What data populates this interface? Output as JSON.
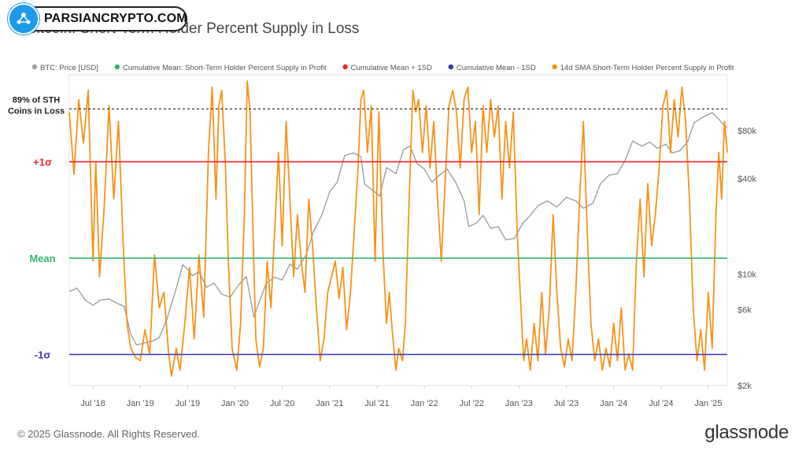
{
  "watermark": {
    "text": "PARSIANCRYPTO.COM"
  },
  "chart_data": {
    "type": "line",
    "title": "Bitcoin: Short-Term Holder Percent Supply in Loss",
    "legend_position": "top",
    "legend": [
      {
        "name": "BTC: Price [USD]",
        "color": "#9aa2a6"
      },
      {
        "name": "Cumulative Mean: Short-Term Holder Percent Supply in Profit",
        "color": "#3cb371"
      },
      {
        "name": "Cumulative Mean + 1SD",
        "color": "#e8262a"
      },
      {
        "name": "Cumulative Mean - 1SD",
        "color": "#3a35b8"
      },
      {
        "name": "14d SMA Short-Term Holder Percent Supply in Profit",
        "color": "#f7931a"
      }
    ],
    "x_ticks": [
      "Jul '18",
      "Jan '19",
      "Jul '19",
      "Jan '20",
      "Jul '20",
      "Jan '21",
      "Jul '21",
      "Jan '22",
      "Jul '22",
      "Jan '23",
      "Jul '23",
      "Jan '24",
      "Jul '24",
      "Jan '25"
    ],
    "x_range": [
      2018.25,
      2025.2
    ],
    "y_right_ticks": [
      {
        "label": "$80k",
        "value": 80000
      },
      {
        "label": "$40k",
        "value": 40000
      },
      {
        "label": "$10k",
        "value": 10000
      },
      {
        "label": "$6k",
        "value": 6000
      },
      {
        "label": "$2k",
        "value": 2000
      }
    ],
    "y_right_scale": "log",
    "y_right_range": [
      2000,
      180000
    ],
    "reference_lines": [
      {
        "label": "89% of STH Coins in Loss",
        "style": "dashed",
        "color": "#222222",
        "level": 89
      },
      {
        "label": "+1σ",
        "color": "#e8262a",
        "level": 72
      },
      {
        "label": "Mean",
        "color": "#3cb371",
        "level": 41
      },
      {
        "label": "-1σ",
        "color": "#3a35b8",
        "level": 10
      }
    ],
    "y_left_range": [
      0,
      100
    ],
    "price_series": {
      "name": "BTC: Price [USD]",
      "points": [
        [
          2018.25,
          7800
        ],
        [
          2018.33,
          8200
        ],
        [
          2018.42,
          6900
        ],
        [
          2018.5,
          6400
        ],
        [
          2018.58,
          6900
        ],
        [
          2018.67,
          7000
        ],
        [
          2018.75,
          6600
        ],
        [
          2018.83,
          6300
        ],
        [
          2018.9,
          4200
        ],
        [
          2018.96,
          3600
        ],
        [
          2019.04,
          3700
        ],
        [
          2019.12,
          3800
        ],
        [
          2019.2,
          4000
        ],
        [
          2019.28,
          5200
        ],
        [
          2019.37,
          7800
        ],
        [
          2019.45,
          11500
        ],
        [
          2019.5,
          10800
        ],
        [
          2019.55,
          9800
        ],
        [
          2019.62,
          10400
        ],
        [
          2019.7,
          8300
        ],
        [
          2019.78,
          8800
        ],
        [
          2019.86,
          7500
        ],
        [
          2019.95,
          7200
        ],
        [
          2020.04,
          8600
        ],
        [
          2020.12,
          9700
        ],
        [
          2020.2,
          5400
        ],
        [
          2020.26,
          6800
        ],
        [
          2020.33,
          8800
        ],
        [
          2020.42,
          9600
        ],
        [
          2020.5,
          9200
        ],
        [
          2020.58,
          11600
        ],
        [
          2020.66,
          10800
        ],
        [
          2020.75,
          13200
        ],
        [
          2020.83,
          18500
        ],
        [
          2020.92,
          23800
        ],
        [
          2021.0,
          33000
        ],
        [
          2021.08,
          38000
        ],
        [
          2021.16,
          56000
        ],
        [
          2021.25,
          58000
        ],
        [
          2021.33,
          55000
        ],
        [
          2021.37,
          37000
        ],
        [
          2021.45,
          34000
        ],
        [
          2021.53,
          31000
        ],
        [
          2021.6,
          47000
        ],
        [
          2021.7,
          43000
        ],
        [
          2021.78,
          61000
        ],
        [
          2021.85,
          64000
        ],
        [
          2021.92,
          50000
        ],
        [
          2022.0,
          46000
        ],
        [
          2022.08,
          38000
        ],
        [
          2022.16,
          42000
        ],
        [
          2022.24,
          46000
        ],
        [
          2022.33,
          38000
        ],
        [
          2022.42,
          29000
        ],
        [
          2022.47,
          20000
        ],
        [
          2022.55,
          21000
        ],
        [
          2022.62,
          23500
        ],
        [
          2022.7,
          19500
        ],
        [
          2022.78,
          20000
        ],
        [
          2022.86,
          16500
        ],
        [
          2022.95,
          16800
        ],
        [
          2023.04,
          21000
        ],
        [
          2023.12,
          23500
        ],
        [
          2023.2,
          27000
        ],
        [
          2023.3,
          29000
        ],
        [
          2023.4,
          26500
        ],
        [
          2023.5,
          30500
        ],
        [
          2023.6,
          29000
        ],
        [
          2023.68,
          26000
        ],
        [
          2023.78,
          28000
        ],
        [
          2023.86,
          37000
        ],
        [
          2023.95,
          42000
        ],
        [
          2024.04,
          43000
        ],
        [
          2024.12,
          52000
        ],
        [
          2024.2,
          69000
        ],
        [
          2024.3,
          64000
        ],
        [
          2024.38,
          68000
        ],
        [
          2024.46,
          62000
        ],
        [
          2024.55,
          66000
        ],
        [
          2024.62,
          58000
        ],
        [
          2024.7,
          60000
        ],
        [
          2024.78,
          68000
        ],
        [
          2024.85,
          90000
        ],
        [
          2024.95,
          98000
        ],
        [
          2025.04,
          104000
        ],
        [
          2025.1,
          96000
        ],
        [
          2025.17,
          86000
        ],
        [
          2025.2,
          84000
        ]
      ]
    },
    "sma_series": {
      "name": "14d SMA Short-Term Holder Percent Supply in Profit",
      "points": [
        [
          2018.25,
          88
        ],
        [
          2018.3,
          68
        ],
        [
          2018.35,
          92
        ],
        [
          2018.4,
          78
        ],
        [
          2018.45,
          95
        ],
        [
          2018.5,
          40
        ],
        [
          2018.53,
          72
        ],
        [
          2018.57,
          35
        ],
        [
          2018.62,
          58
        ],
        [
          2018.67,
          90
        ],
        [
          2018.72,
          60
        ],
        [
          2018.77,
          85
        ],
        [
          2018.82,
          45
        ],
        [
          2018.86,
          20
        ],
        [
          2018.9,
          12
        ],
        [
          2018.95,
          9
        ],
        [
          2019.0,
          8
        ],
        [
          2019.05,
          18
        ],
        [
          2019.1,
          10
        ],
        [
          2019.15,
          42
        ],
        [
          2019.2,
          25
        ],
        [
          2019.25,
          30
        ],
        [
          2019.3,
          10
        ],
        [
          2019.33,
          3
        ],
        [
          2019.38,
          12
        ],
        [
          2019.42,
          5
        ],
        [
          2019.47,
          20
        ],
        [
          2019.52,
          38
        ],
        [
          2019.57,
          15
        ],
        [
          2019.62,
          42
        ],
        [
          2019.67,
          22
        ],
        [
          2019.72,
          75
        ],
        [
          2019.76,
          96
        ],
        [
          2019.8,
          60
        ],
        [
          2019.83,
          90
        ],
        [
          2019.86,
          95
        ],
        [
          2019.9,
          70
        ],
        [
          2019.93,
          40
        ],
        [
          2019.97,
          12
        ],
        [
          2020.02,
          5
        ],
        [
          2020.06,
          20
        ],
        [
          2020.1,
          55
        ],
        [
          2020.13,
          98
        ],
        [
          2020.16,
          88
        ],
        [
          2020.19,
          50
        ],
        [
          2020.22,
          15
        ],
        [
          2020.26,
          6
        ],
        [
          2020.3,
          12
        ],
        [
          2020.34,
          40
        ],
        [
          2020.38,
          25
        ],
        [
          2020.42,
          50
        ],
        [
          2020.46,
          75
        ],
        [
          2020.5,
          45
        ],
        [
          2020.54,
          85
        ],
        [
          2020.58,
          60
        ],
        [
          2020.62,
          35
        ],
        [
          2020.66,
          55
        ],
        [
          2020.7,
          40
        ],
        [
          2020.74,
          30
        ],
        [
          2020.78,
          60
        ],
        [
          2020.82,
          45
        ],
        [
          2020.86,
          25
        ],
        [
          2020.9,
          8
        ],
        [
          2020.94,
          15
        ],
        [
          2020.98,
          30
        ],
        [
          2021.02,
          35
        ],
        [
          2021.06,
          40
        ],
        [
          2021.1,
          28
        ],
        [
          2021.14,
          38
        ],
        [
          2021.18,
          18
        ],
        [
          2021.22,
          30
        ],
        [
          2021.26,
          50
        ],
        [
          2021.3,
          70
        ],
        [
          2021.33,
          92
        ],
        [
          2021.36,
          95
        ],
        [
          2021.4,
          75
        ],
        [
          2021.44,
          90
        ],
        [
          2021.48,
          40
        ],
        [
          2021.52,
          88
        ],
        [
          2021.56,
          45
        ],
        [
          2021.6,
          20
        ],
        [
          2021.63,
          30
        ],
        [
          2021.66,
          18
        ],
        [
          2021.7,
          5
        ],
        [
          2021.73,
          12
        ],
        [
          2021.77,
          8
        ],
        [
          2021.8,
          20
        ],
        [
          2021.84,
          60
        ],
        [
          2021.88,
          95
        ],
        [
          2021.91,
          88
        ],
        [
          2021.94,
          92
        ],
        [
          2021.98,
          75
        ],
        [
          2022.02,
          90
        ],
        [
          2022.06,
          70
        ],
        [
          2022.1,
          85
        ],
        [
          2022.14,
          60
        ],
        [
          2022.18,
          40
        ],
        [
          2022.22,
          65
        ],
        [
          2022.26,
          90
        ],
        [
          2022.3,
          95
        ],
        [
          2022.34,
          88
        ],
        [
          2022.38,
          70
        ],
        [
          2022.42,
          92
        ],
        [
          2022.46,
          96
        ],
        [
          2022.5,
          75
        ],
        [
          2022.54,
          85
        ],
        [
          2022.58,
          55
        ],
        [
          2022.62,
          90
        ],
        [
          2022.66,
          75
        ],
        [
          2022.7,
          92
        ],
        [
          2022.74,
          80
        ],
        [
          2022.78,
          90
        ],
        [
          2022.82,
          60
        ],
        [
          2022.86,
          85
        ],
        [
          2022.9,
          70
        ],
        [
          2022.94,
          88
        ],
        [
          2022.98,
          50
        ],
        [
          2023.02,
          25
        ],
        [
          2023.05,
          8
        ],
        [
          2023.08,
          15
        ],
        [
          2023.12,
          5
        ],
        [
          2023.16,
          20
        ],
        [
          2023.2,
          8
        ],
        [
          2023.24,
          30
        ],
        [
          2023.28,
          10
        ],
        [
          2023.32,
          25
        ],
        [
          2023.36,
          55
        ],
        [
          2023.4,
          30
        ],
        [
          2023.44,
          12
        ],
        [
          2023.48,
          6
        ],
        [
          2023.52,
          15
        ],
        [
          2023.56,
          8
        ],
        [
          2023.6,
          30
        ],
        [
          2023.64,
          60
        ],
        [
          2023.68,
          85
        ],
        [
          2023.72,
          50
        ],
        [
          2023.76,
          20
        ],
        [
          2023.8,
          8
        ],
        [
          2023.84,
          15
        ],
        [
          2023.88,
          5
        ],
        [
          2023.92,
          12
        ],
        [
          2023.96,
          6
        ],
        [
          2024.0,
          20
        ],
        [
          2024.04,
          8
        ],
        [
          2024.08,
          25
        ],
        [
          2024.12,
          5
        ],
        [
          2024.16,
          10
        ],
        [
          2024.2,
          5
        ],
        [
          2024.24,
          40
        ],
        [
          2024.28,
          60
        ],
        [
          2024.32,
          35
        ],
        [
          2024.36,
          65
        ],
        [
          2024.4,
          45
        ],
        [
          2024.44,
          55
        ],
        [
          2024.48,
          70
        ],
        [
          2024.52,
          90
        ],
        [
          2024.56,
          95
        ],
        [
          2024.6,
          75
        ],
        [
          2024.64,
          92
        ],
        [
          2024.68,
          80
        ],
        [
          2024.72,
          96
        ],
        [
          2024.76,
          85
        ],
        [
          2024.8,
          60
        ],
        [
          2024.84,
          25
        ],
        [
          2024.88,
          8
        ],
        [
          2024.92,
          18
        ],
        [
          2024.96,
          5
        ],
        [
          2025.0,
          30
        ],
        [
          2025.04,
          12
        ],
        [
          2025.08,
          55
        ],
        [
          2025.11,
          75
        ],
        [
          2025.14,
          60
        ],
        [
          2025.17,
          85
        ],
        [
          2025.2,
          75
        ]
      ]
    }
  },
  "footer": {
    "copyright": "© 2025 Glassnode. All Rights Reserved.",
    "brand": "glassnode"
  }
}
